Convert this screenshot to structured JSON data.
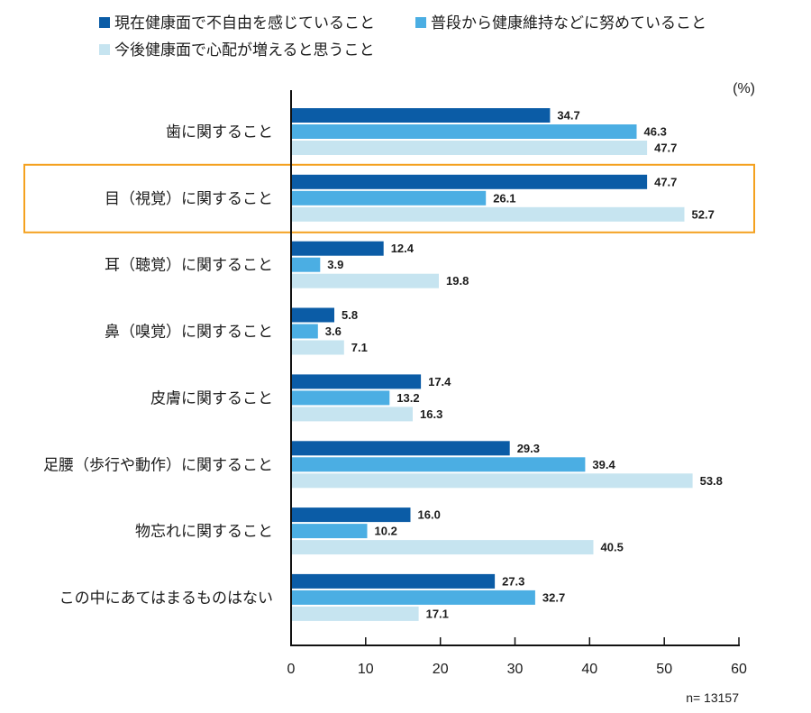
{
  "chart_data": {
    "type": "bar",
    "orientation": "horizontal",
    "categories": [
      "歯に関すること",
      "目（視覚）に関すること",
      "耳（聴覚）に関すること",
      "鼻（嗅覚）に関すること",
      "皮膚に関すること",
      "足腰（歩行や動作）に関すること",
      "物忘れに関すること",
      "この中にあてはまるものはない"
    ],
    "series": [
      {
        "name": "現在健康面で不自由を感じていること",
        "color": "#0B5CA6",
        "values": [
          34.7,
          47.7,
          12.4,
          5.8,
          17.4,
          29.3,
          16.0,
          27.3
        ]
      },
      {
        "name": "普段から健康維持などに努めていること",
        "color": "#4BAEE3",
        "values": [
          46.3,
          26.1,
          3.9,
          3.6,
          13.2,
          39.4,
          10.2,
          32.7
        ]
      },
      {
        "name": "今後健康面で心配が増えると思うこと",
        "color": "#C6E4F0",
        "values": [
          47.7,
          52.7,
          19.8,
          7.1,
          16.3,
          53.8,
          40.5,
          17.1
        ]
      }
    ],
    "xlim": [
      0,
      60
    ],
    "xticks": [
      0,
      10,
      20,
      30,
      40,
      50,
      60
    ],
    "unit_label": "(%)",
    "sample_note": "n= 13157",
    "legend_position": "top",
    "grid": false,
    "data_labels": true,
    "highlight_index": 1,
    "highlight_color": "#F4A11F"
  }
}
